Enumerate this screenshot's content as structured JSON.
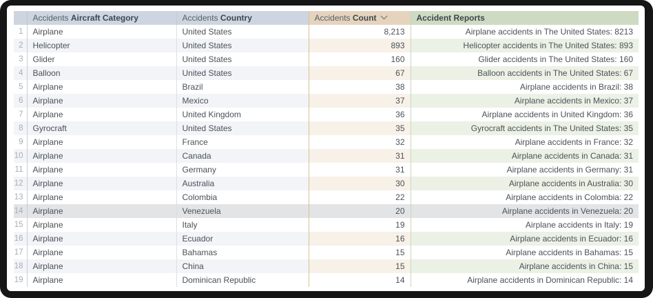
{
  "colors": {
    "frame": "#161616",
    "header-blue": "#cdd6e0",
    "header-tan": "#e6d3bd",
    "header-green": "#cfdac3",
    "stripe-blue": "#f2f4f7",
    "stripe-tan": "#f7f1e8",
    "stripe-green": "#ecf1e6",
    "selected": "#e2e4e6"
  },
  "table": {
    "columns": [
      {
        "prefix": "Accidents",
        "label": "Aircraft Category",
        "sorted": ""
      },
      {
        "prefix": "Accidents",
        "label": "Country",
        "sorted": ""
      },
      {
        "prefix": "Accidents",
        "label": "Count",
        "sorted": "descending"
      },
      {
        "prefix": "",
        "label": "Accident Reports",
        "sorted": ""
      }
    ],
    "rows": [
      {
        "num": "1",
        "category": "Airplane",
        "country": "United States",
        "count": "8,213",
        "report": "Airplane accidents in The United States: 8213",
        "selected": false
      },
      {
        "num": "2",
        "category": "Helicopter",
        "country": "United States",
        "count": "893",
        "report": "Helicopter accidents in The United States: 893",
        "selected": false
      },
      {
        "num": "3",
        "category": "Glider",
        "country": "United States",
        "count": "160",
        "report": "Glider accidents in The United States: 160",
        "selected": false
      },
      {
        "num": "4",
        "category": "Balloon",
        "country": "United States",
        "count": "67",
        "report": "Balloon accidents in The United States: 67",
        "selected": false
      },
      {
        "num": "5",
        "category": "Airplane",
        "country": "Brazil",
        "count": "38",
        "report": "Airplane accidents in Brazil: 38",
        "selected": false
      },
      {
        "num": "6",
        "category": "Airplane",
        "country": "Mexico",
        "count": "37",
        "report": "Airplane accidents in Mexico: 37",
        "selected": false
      },
      {
        "num": "7",
        "category": "Airplane",
        "country": "United Kingdom",
        "count": "36",
        "report": "Airplane accidents in United Kingdom: 36",
        "selected": false
      },
      {
        "num": "8",
        "category": "Gyrocraft",
        "country": "United States",
        "count": "35",
        "report": "Gyrocraft accidents in The United States: 35",
        "selected": false
      },
      {
        "num": "9",
        "category": "Airplane",
        "country": "France",
        "count": "32",
        "report": "Airplane accidents in France: 32",
        "selected": false
      },
      {
        "num": "10",
        "category": "Airplane",
        "country": "Canada",
        "count": "31",
        "report": "Airplane accidents in Canada: 31",
        "selected": false
      },
      {
        "num": "11",
        "category": "Airplane",
        "country": "Germany",
        "count": "31",
        "report": "Airplane accidents in Germany: 31",
        "selected": false
      },
      {
        "num": "12",
        "category": "Airplane",
        "country": "Australia",
        "count": "30",
        "report": "Airplane accidents in Australia: 30",
        "selected": false
      },
      {
        "num": "13",
        "category": "Airplane",
        "country": "Colombia",
        "count": "22",
        "report": "Airplane accidents in Colombia: 22",
        "selected": false
      },
      {
        "num": "14",
        "category": "Airplane",
        "country": "Venezuela",
        "count": "20",
        "report": "Airplane accidents in Venezuela: 20",
        "selected": true
      },
      {
        "num": "15",
        "category": "Airplane",
        "country": "Italy",
        "count": "19",
        "report": "Airplane accidents in Italy: 19",
        "selected": false
      },
      {
        "num": "16",
        "category": "Airplane",
        "country": "Ecuador",
        "count": "16",
        "report": "Airplane accidents in Ecuador: 16",
        "selected": false
      },
      {
        "num": "17",
        "category": "Airplane",
        "country": "Bahamas",
        "count": "15",
        "report": "Airplane accidents in Bahamas: 15",
        "selected": false
      },
      {
        "num": "18",
        "category": "Airplane",
        "country": "China",
        "count": "15",
        "report": "Airplane accidents in China: 15",
        "selected": false
      },
      {
        "num": "19",
        "category": "Airplane",
        "country": "Dominican Republic",
        "count": "14",
        "report": "Airplane accidents in Dominican Republic: 14",
        "selected": false
      }
    ]
  }
}
